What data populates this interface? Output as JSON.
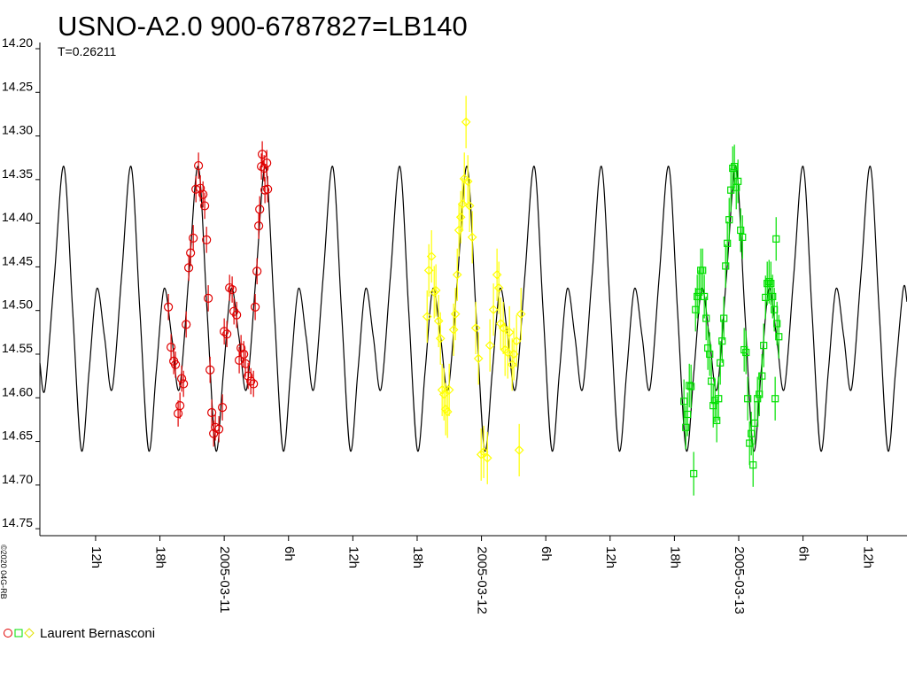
{
  "chart_data": {
    "type": "scatter",
    "title": "USNO-A2.0 900-6787827=LB140",
    "subtitle": "T=0.26211",
    "copyright": "©2020 04G-RB",
    "legend": {
      "label": "Laurent Bernasconi",
      "position": "bottom-left"
    },
    "reverse_y": true,
    "xlim": [
      -17.2,
      63.7
    ],
    "ylim": [
      14.2,
      14.758
    ],
    "yticks": [
      {
        "value": 14.2,
        "label": "14.20"
      },
      14.25,
      {
        "value": 14.3,
        "label": "14.30"
      },
      14.35,
      {
        "value": 14.4,
        "label": "14.40"
      },
      14.45,
      {
        "value": 14.5,
        "label": "14.50"
      },
      14.55,
      {
        "value": 14.6,
        "label": "14.60"
      },
      14.65,
      {
        "value": 14.7,
        "label": "14.70"
      },
      14.75
    ],
    "xticks": [
      {
        "value": -12,
        "label": "12h"
      },
      {
        "value": -6,
        "label": "18h"
      },
      {
        "value": 0,
        "label": "2005-03-11"
      },
      {
        "value": 6,
        "label": "6h"
      },
      {
        "value": 12,
        "label": "12h"
      },
      {
        "value": 18,
        "label": "18h"
      },
      {
        "value": 24,
        "label": "2005-03-12"
      },
      {
        "value": 30,
        "label": "6h"
      },
      {
        "value": 36,
        "label": "12h"
      },
      {
        "value": 42,
        "label": "18h"
      },
      {
        "value": 48,
        "label": "2005-03-13"
      },
      {
        "value": 54,
        "label": "6h"
      },
      {
        "value": 60,
        "label": "12h"
      }
    ],
    "series": [
      {
        "mode": "line",
        "color": "#000000",
        "x": [
          -17.2,
          -16.72,
          -15.84,
          -14.96,
          -14.14,
          -13.33,
          -12.61,
          -11.89,
          -11.17,
          -10.45,
          -9.57,
          -8.69,
          -7.87,
          -7.06,
          -6.34,
          -5.62,
          -4.9,
          -4.18,
          -3.3,
          -2.42,
          -1.6,
          -0.79,
          -0.07,
          0.65,
          1.37,
          2.09,
          2.97,
          3.85,
          4.67,
          5.48,
          6.2,
          6.92,
          7.64,
          8.36,
          9.24,
          10.12,
          10.94,
          11.75,
          12.47,
          13.19,
          13.91,
          14.63,
          15.51,
          16.39,
          17.21,
          18.02,
          18.74,
          19.46,
          20.18,
          20.9,
          21.78,
          22.66,
          23.48,
          24.29,
          25.01,
          25.73,
          26.45,
          27.17,
          28.05,
          28.93,
          29.75,
          30.56,
          31.28,
          32.0,
          32.72,
          33.44,
          34.32,
          35.2,
          36.02,
          36.83,
          37.55,
          38.27,
          38.99,
          39.71,
          40.59,
          41.47,
          42.29,
          43.1,
          43.82,
          44.54,
          45.26,
          45.98,
          46.86,
          47.74,
          48.56,
          49.37,
          50.09,
          50.81,
          51.53,
          52.25,
          53.13,
          54.01,
          54.83,
          55.64,
          56.36,
          57.08,
          57.8,
          58.52,
          59.4,
          60.28,
          61.1,
          61.91,
          62.63,
          63.35,
          63.7
        ],
        "values": [
          14.56,
          14.59,
          14.46,
          14.335,
          14.5,
          14.66,
          14.57,
          14.475,
          14.53,
          14.59,
          14.46,
          14.335,
          14.5,
          14.66,
          14.57,
          14.475,
          14.53,
          14.59,
          14.46,
          14.335,
          14.5,
          14.66,
          14.57,
          14.475,
          14.53,
          14.59,
          14.46,
          14.335,
          14.5,
          14.66,
          14.57,
          14.475,
          14.53,
          14.59,
          14.46,
          14.335,
          14.5,
          14.66,
          14.57,
          14.475,
          14.53,
          14.59,
          14.46,
          14.335,
          14.5,
          14.66,
          14.57,
          14.475,
          14.53,
          14.59,
          14.46,
          14.335,
          14.5,
          14.66,
          14.57,
          14.475,
          14.53,
          14.59,
          14.46,
          14.335,
          14.5,
          14.66,
          14.57,
          14.475,
          14.53,
          14.59,
          14.46,
          14.335,
          14.5,
          14.66,
          14.57,
          14.475,
          14.53,
          14.59,
          14.46,
          14.335,
          14.5,
          14.66,
          14.57,
          14.475,
          14.53,
          14.59,
          14.46,
          14.335,
          14.5,
          14.66,
          14.57,
          14.475,
          14.53,
          14.59,
          14.46,
          14.335,
          14.5,
          14.66,
          14.57,
          14.475,
          14.53,
          14.59,
          14.46,
          14.335,
          14.5,
          14.66,
          14.57,
          14.475,
          14.49
        ]
      },
      {
        "mode": "points",
        "marker": "circle",
        "color": "#e00000",
        "error": 0.015,
        "x": [
          -5.21,
          -4.96,
          -4.71,
          -4.55,
          -4.3,
          -4.13,
          -3.97,
          -3.8,
          -3.55,
          -3.31,
          -3.14,
          -2.89,
          -2.64,
          -2.4,
          -2.23,
          -1.98,
          -1.82,
          -1.65,
          -1.49,
          -1.32,
          -1.16,
          -0.99,
          -0.83,
          -0.5,
          -0.17,
          0,
          0.25,
          0.5,
          0.74,
          0.91,
          1.16,
          1.4,
          1.57,
          1.82,
          1.98,
          2.23,
          2.48,
          2.73,
          2.89,
          3.06,
          3.22,
          3.31,
          3.47,
          3.55,
          3.72,
          3.8,
          3.97,
          4.05
        ],
        "values": [
          14.496,
          14.542,
          14.558,
          14.562,
          14.618,
          14.609,
          14.578,
          14.584,
          14.516,
          14.451,
          14.434,
          14.417,
          14.361,
          14.334,
          14.36,
          14.367,
          14.38,
          14.419,
          14.486,
          14.568,
          14.617,
          14.641,
          14.634,
          14.636,
          14.611,
          14.524,
          14.527,
          14.474,
          14.476,
          14.501,
          14.505,
          14.557,
          14.543,
          14.55,
          14.561,
          14.575,
          14.581,
          14.584,
          14.496,
          14.455,
          14.403,
          14.384,
          14.335,
          14.321,
          14.337,
          14.362,
          14.331,
          14.361
        ]
      },
      {
        "mode": "points",
        "marker": "diamond",
        "color": "#ffff00",
        "error": 0.03,
        "x": [
          18.93,
          19.09,
          19.34,
          19.59,
          19.75,
          20.0,
          20.17,
          20.33,
          20.5,
          20.66,
          20.83,
          20.99,
          21.4,
          21.57,
          21.74,
          21.9,
          22.07,
          22.23,
          22.4,
          22.56,
          22.73,
          22.89,
          23.14,
          23.47,
          23.72,
          23.97,
          24.21,
          24.55,
          24.79,
          25.12,
          25.45,
          25.62,
          25.79,
          26.03,
          26.2,
          26.45,
          26.61,
          26.86,
          27.02,
          27.27,
          27.52,
          27.69
        ],
        "values": [
          14.507,
          14.454,
          14.438,
          14.479,
          14.477,
          14.512,
          14.532,
          14.591,
          14.596,
          14.613,
          14.616,
          14.591,
          14.522,
          14.504,
          14.459,
          14.408,
          14.393,
          14.378,
          14.349,
          14.284,
          14.352,
          14.38,
          14.416,
          14.52,
          14.555,
          14.665,
          14.662,
          14.669,
          14.54,
          14.499,
          14.459,
          14.474,
          14.515,
          14.52,
          14.545,
          14.548,
          14.525,
          14.562,
          14.55,
          14.535,
          14.66,
          14.504
        ]
      },
      {
        "mode": "points",
        "marker": "square",
        "color": "#00e000",
        "error": 0.025,
        "x": [
          42.89,
          43.06,
          43.22,
          43.39,
          43.55,
          43.8,
          43.97,
          44.13,
          44.3,
          44.46,
          44.63,
          44.79,
          44.96,
          45.12,
          45.29,
          45.45,
          45.62,
          45.79,
          45.95,
          46.12,
          46.28,
          46.45,
          46.61,
          46.78,
          46.94,
          47.11,
          47.27,
          47.44,
          47.6,
          47.77,
          47.93,
          48.18,
          48.35,
          48.51,
          48.68,
          48.84,
          49.01,
          49.17,
          49.34,
          49.5,
          49.75,
          49.92,
          50.17,
          50.33,
          50.5,
          50.66,
          50.83,
          51.0,
          51.16,
          51.32,
          51.4,
          51.49,
          51.57,
          51.74
        ],
        "values": [
          14.604,
          14.634,
          14.619,
          14.586,
          14.587,
          14.687,
          14.499,
          14.484,
          14.479,
          14.454,
          14.454,
          14.484,
          14.509,
          14.543,
          14.55,
          14.581,
          14.609,
          14.603,
          14.626,
          14.601,
          14.56,
          14.535,
          14.509,
          14.449,
          14.423,
          14.396,
          14.362,
          14.337,
          14.335,
          14.359,
          14.352,
          14.408,
          14.416,
          14.545,
          14.548,
          14.601,
          14.652,
          14.641,
          14.677,
          14.629,
          14.601,
          14.596,
          14.575,
          14.54,
          14.485,
          14.469,
          14.467,
          14.469,
          14.484,
          14.499,
          14.601,
          14.418,
          14.515,
          14.53
        ]
      }
    ]
  }
}
